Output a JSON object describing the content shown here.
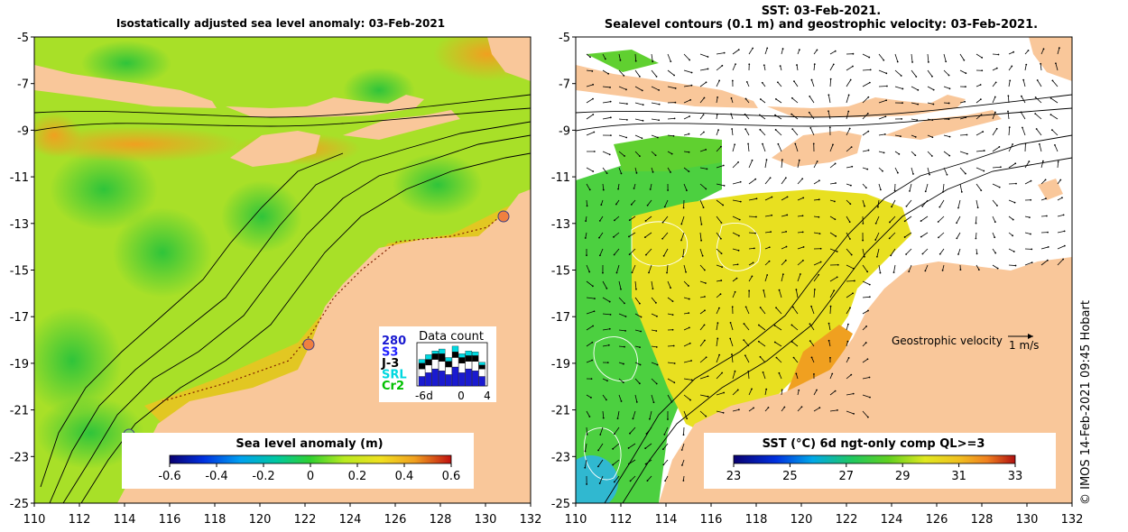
{
  "left_panel": {
    "title": "Isostatically adjusted sea level anomaly: 03-Feb-2021",
    "colorbar": {
      "label": "Sea level anomaly (m)",
      "min": -0.6,
      "max": 0.6,
      "ticks": [
        "-0.6",
        "-0.4",
        "-0.2",
        "0",
        "0.2",
        "0.4",
        "0.6"
      ]
    },
    "data_count": {
      "title": "Data count",
      "satellites": [
        "280",
        "S3",
        "J-3",
        "SRL",
        "Cr2"
      ],
      "sat_colors": [
        "#1a1ad0",
        "#2020ff",
        "#000000",
        "#00d8e0",
        "#00c000"
      ],
      "xticks": [
        "-6",
        "d",
        "0",
        "4"
      ]
    }
  },
  "right_panel": {
    "title_line1": "SST: 03-Feb-2021.",
    "title_line2": "Sealevel contours (0.1 m) and geostrophic velocity: 03-Feb-2021.",
    "colorbar": {
      "label": "SST (°C) 6d ngt-only comp QL>=3",
      "min": 23,
      "max": 33,
      "ticks": [
        "23",
        "25",
        "27",
        "29",
        "31",
        "33"
      ]
    },
    "velocity_key": {
      "label": "Geostrophic velocity",
      "scale": "1 m/s"
    }
  },
  "axes": {
    "lon_min": 110,
    "lon_max": 132,
    "lat_min": -25,
    "lat_max": -5,
    "lon_ticks": [
      "110",
      "112",
      "114",
      "116",
      "118",
      "120",
      "122",
      "124",
      "126",
      "128",
      "130",
      "132"
    ],
    "lat_ticks": [
      "-5",
      "-7",
      "-9",
      "-11",
      "-13",
      "-15",
      "-17",
      "-19",
      "-21",
      "-23",
      "-25"
    ]
  },
  "credit": "© IMOS 14-Feb-2021 09:45 Hobart",
  "colors": {
    "land": "#f9c79a",
    "sla_green": "#57d42f",
    "sla_yellow": "#e6ee2a",
    "sla_orange": "#f3a81d",
    "sst_white": "#ffffff"
  }
}
